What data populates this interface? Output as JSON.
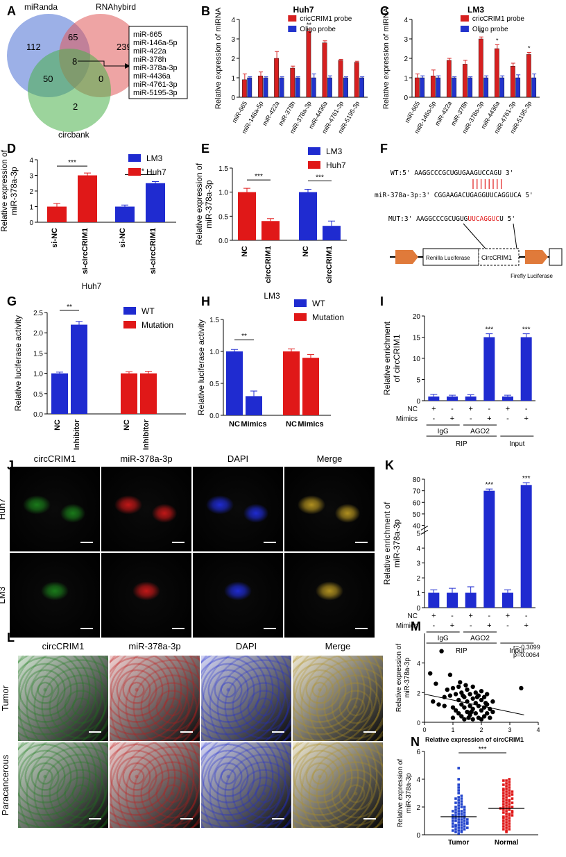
{
  "panel_labels": {
    "A": "A",
    "B": "B",
    "C": "C",
    "D": "D",
    "E": "E",
    "F": "F",
    "G": "G",
    "H": "H",
    "I": "I",
    "J": "J",
    "K": "K",
    "L": "L",
    "M": "M",
    "N": "N"
  },
  "venn": {
    "set1": "miRanda",
    "set2": "RNAhybird",
    "set3": "circbank",
    "n1": "112",
    "n12": "65",
    "n2": "239",
    "n123": "8",
    "n13": "50",
    "n23": "0",
    "n3": "2",
    "list": [
      "miR-665",
      "miR-146a-5p",
      "miR-422a",
      "miR-378h",
      "miR-378a-3p",
      "miR-4436a",
      "miR-4761-3p",
      "miR-5195-3p"
    ]
  },
  "seq": {
    "wt": "WT:5'  AAGGCCCGCUGUGAAGUCCAGU 3'",
    "mir": "miR-378a-3p:3'  CGGAAGACUGAGGUUCAGGUCA 5'",
    "mut_prefix": "MUT:3'  AAGGCCCGCUGUG",
    "mut_red": "UUCAGGUC",
    "mut_suffix": "U 5'",
    "box1": "Renilla Luciferase",
    "box2": "CircCRIM1",
    "box3": "Firefly Luciferase"
  },
  "micro": {
    "j_cols": [
      "circCRIM1",
      "miR-378a-3p",
      "DAPI",
      "Merge"
    ],
    "j_rows": [
      "Huh7",
      "LM3"
    ],
    "l_cols": [
      "circCRIM1",
      "miR-378a-3p",
      "DAPI",
      "Merge"
    ],
    "l_rows": [
      "Tumor",
      "Paracancerous"
    ],
    "channel_colors": [
      "#1a7a1a",
      "#c01818",
      "#1f2bd0",
      "#b09020"
    ]
  },
  "chart_data": [
    {
      "id": "B",
      "type": "bar",
      "title": "Huh7",
      "ylabel": "Relative expression of miRNA",
      "ylim": [
        0,
        4
      ],
      "yticks": [
        "0",
        "1",
        "2",
        "3",
        "4"
      ],
      "categories": [
        "miR-665",
        "miR-146a-5p",
        "miR-422a",
        "miR-378h",
        "miR-378a-3p",
        "miR-4436a",
        "miR-4761-3p",
        "miR-5195-3p"
      ],
      "series": [
        {
          "name": "cricCRIM1 probe",
          "color": "#d62020",
          "values": [
            0.9,
            1.1,
            2.0,
            1.5,
            3.4,
            2.8,
            1.9,
            1.8
          ],
          "errors": [
            0.3,
            0.2,
            0.35,
            0.1,
            0.1,
            0.1,
            0.05,
            0.05
          ]
        },
        {
          "name": "Oligo probe",
          "color": "#2233cc",
          "values": [
            1.0,
            1.0,
            1.0,
            1.0,
            1.0,
            1.0,
            1.0,
            1.0
          ],
          "errors": [
            0.05,
            0.05,
            0.05,
            0.05,
            0.2,
            0.1,
            0.05,
            0.05
          ]
        }
      ],
      "annotations": [
        {
          "category": 4,
          "text": "**"
        }
      ]
    },
    {
      "id": "C",
      "type": "bar",
      "title": "LM3",
      "ylabel": "Relative expression of miRNA",
      "ylim": [
        0,
        4
      ],
      "yticks": [
        "0",
        "1",
        "2",
        "3",
        "4"
      ],
      "categories": [
        "miR-665",
        "miR-146a-5p",
        "miR-422a",
        "miR-378h",
        "miR-378a-3p",
        "miR-4436a",
        "miR-4761-3p",
        "miR-5195-3p"
      ],
      "series": [
        {
          "name": "cricCRIM1 probe",
          "color": "#d62020",
          "values": [
            1.0,
            1.1,
            1.9,
            1.7,
            3.0,
            2.5,
            1.6,
            2.2
          ],
          "errors": [
            0.2,
            0.3,
            0.1,
            0.2,
            0.1,
            0.2,
            0.15,
            0.1
          ]
        },
        {
          "name": "Oligo probe",
          "color": "#2233cc",
          "values": [
            1.0,
            1.0,
            1.0,
            1.0,
            1.0,
            1.0,
            1.0,
            1.0
          ],
          "errors": [
            0.1,
            0.1,
            0.05,
            0.05,
            0.1,
            0.1,
            0.15,
            0.2
          ]
        }
      ],
      "annotations": [
        {
          "category": 4,
          "text": "**"
        },
        {
          "category": 5,
          "text": "*"
        },
        {
          "category": 7,
          "text": "*"
        }
      ]
    },
    {
      "id": "D",
      "type": "bar",
      "ylabel": "Relative expression of miR-378a-3p",
      "ylim": [
        0,
        4
      ],
      "yticks": [
        "0",
        "1",
        "2",
        "3",
        "4"
      ],
      "categories": [
        "si-NC",
        "si-circCRIM1",
        "si-NC",
        "si-circCRIM1"
      ],
      "values": [
        1.0,
        3.0,
        1.0,
        2.5
      ],
      "errors": [
        0.2,
        0.15,
        0.1,
        0.1
      ],
      "colors": [
        "#e01818",
        "#e01818",
        "#1f2bd0",
        "#1f2bd0"
      ],
      "legend": [
        {
          "name": "LM3",
          "color": "#1f2bd0"
        },
        {
          "name": "Huh7",
          "color": "#e01818"
        }
      ],
      "sig": [
        {
          "from": 0,
          "to": 1,
          "text": "***"
        },
        {
          "from": 2,
          "to": 3,
          "text": "***"
        }
      ]
    },
    {
      "id": "E",
      "type": "bar",
      "ylabel": "Relative expression of miR-378a-3p",
      "ylim": [
        0,
        1.5
      ],
      "yticks": [
        "0.0",
        "0.5",
        "1.0",
        "1.5"
      ],
      "categories": [
        "NC",
        "circCRIM1",
        "NC",
        "circCRIM1"
      ],
      "values": [
        1.0,
        0.4,
        1.0,
        0.3
      ],
      "errors": [
        0.08,
        0.05,
        0.06,
        0.1
      ],
      "colors": [
        "#e01818",
        "#e01818",
        "#1f2bd0",
        "#1f2bd0"
      ],
      "legend": [
        {
          "name": "LM3",
          "color": "#1f2bd0"
        },
        {
          "name": "Huh7",
          "color": "#e01818"
        }
      ],
      "sig": [
        {
          "from": 0,
          "to": 1,
          "text": "***"
        },
        {
          "from": 2,
          "to": 3,
          "text": "***"
        }
      ]
    },
    {
      "id": "G",
      "type": "bar",
      "title": "Huh7",
      "ylabel": "Relative luciferase activity",
      "ylim": [
        0,
        2.5
      ],
      "yticks": [
        "0.0",
        "0.5",
        "1.0",
        "1.5",
        "2.0",
        "2.5"
      ],
      "categories": [
        "NC",
        "Inhibitor",
        "NC",
        "Inhibitor"
      ],
      "values": [
        1.0,
        2.2,
        1.0,
        1.0
      ],
      "errors": [
        0.03,
        0.08,
        0.04,
        0.05
      ],
      "colors": [
        "#1f2bd0",
        "#1f2bd0",
        "#e01818",
        "#e01818"
      ],
      "legend": [
        {
          "name": "WT",
          "color": "#1f2bd0"
        },
        {
          "name": "Mutation",
          "color": "#e01818"
        }
      ],
      "sig": [
        {
          "from": 0,
          "to": 1,
          "text": "**"
        }
      ]
    },
    {
      "id": "H",
      "type": "bar",
      "title": "LM3",
      "ylabel": "Relative luciferase activity",
      "ylim": [
        0,
        1.5
      ],
      "yticks": [
        "0.0",
        "0.5",
        "1.0",
        "1.5"
      ],
      "categories": [
        "NC",
        "Mimics",
        "NC",
        "Mimics"
      ],
      "values": [
        1.0,
        0.3,
        1.0,
        0.9
      ],
      "errors": [
        0.03,
        0.08,
        0.04,
        0.05
      ],
      "colors": [
        "#1f2bd0",
        "#1f2bd0",
        "#e01818",
        "#e01818"
      ],
      "legend": [
        {
          "name": "WT",
          "color": "#1f2bd0"
        },
        {
          "name": "Mutation",
          "color": "#e01818"
        }
      ],
      "sig": [
        {
          "from": 0,
          "to": 1,
          "text": "**"
        }
      ]
    },
    {
      "id": "I",
      "type": "bar",
      "ylabel": "Relative enrichment of circCRIM1",
      "ylim": [
        0,
        20
      ],
      "yticks": [
        "0",
        "5",
        "10",
        "15",
        "20"
      ],
      "values": [
        1.0,
        1.0,
        1.0,
        15.0,
        1.0,
        15.0
      ],
      "errors": [
        0.5,
        0.3,
        0.4,
        0.8,
        0.3,
        0.8
      ],
      "color": "#1f2bd0",
      "row_nc": [
        "+",
        "-",
        "+",
        "-",
        "+",
        "-"
      ],
      "row_mimics": [
        "-",
        "+",
        "-",
        "+",
        "-",
        "+"
      ],
      "row_labels": [
        "NC",
        "Mimics"
      ],
      "groups": [
        "IgG",
        "AGO2",
        "Input"
      ],
      "group_label": "RIP",
      "stars": [
        {
          "index": 3,
          "text": "***"
        },
        {
          "index": 5,
          "text": "***"
        }
      ]
    },
    {
      "id": "K",
      "type": "bar",
      "ylabel": "Relative enrichment of miR-378a-3p",
      "ylim": [
        0,
        80
      ],
      "axis_break": [
        5,
        40
      ],
      "yticks_low": [
        "0",
        "1",
        "2",
        "3",
        "4",
        "5"
      ],
      "yticks_high": [
        "40",
        "50",
        "60",
        "70",
        "80"
      ],
      "values": [
        1.0,
        1.0,
        1.0,
        70.0,
        1.0,
        75.0
      ],
      "errors": [
        0.2,
        0.3,
        0.4,
        1.5,
        0.2,
        2.0
      ],
      "color": "#1f2bd0",
      "row_nc": [
        "+",
        "-",
        "+",
        "-",
        "+",
        "-"
      ],
      "row_mimics": [
        "-",
        "+",
        "-",
        "+",
        "-",
        "+"
      ],
      "row_labels": [
        "NC",
        "Mimics"
      ],
      "groups": [
        "IgG",
        "AGO2",
        "Input"
      ],
      "group_label": "RIP",
      "stars": [
        {
          "index": 3,
          "text": "***"
        },
        {
          "index": 5,
          "text": "***"
        }
      ]
    },
    {
      "id": "M",
      "type": "scatter",
      "xlabel": "Relative expression of circCRIM1",
      "ylabel": "Relative expression of miR-378a-3p",
      "xlim": [
        0,
        4
      ],
      "ylim": [
        0,
        6
      ],
      "xticks": [
        "0",
        "1",
        "2",
        "3",
        "4"
      ],
      "yticks": [
        "0",
        "2",
        "4"
      ],
      "annotation": [
        "r=-0.3099",
        "p=0.0064"
      ],
      "fit": [
        [
          0,
          1.9
        ],
        [
          3.5,
          0.5
        ]
      ],
      "points": [
        [
          0.2,
          3.3
        ],
        [
          0.3,
          1.4
        ],
        [
          0.4,
          2.6
        ],
        [
          0.5,
          1.2
        ],
        [
          0.6,
          4.8
        ],
        [
          0.7,
          1.7
        ],
        [
          0.8,
          2.2
        ],
        [
          0.9,
          1.8
        ],
        [
          1.0,
          2.3
        ],
        [
          1.0,
          1.0
        ],
        [
          1.1,
          1.9
        ],
        [
          1.1,
          0.8
        ],
        [
          1.2,
          2.4
        ],
        [
          1.2,
          1.5
        ],
        [
          1.2,
          0.6
        ],
        [
          1.3,
          2.0
        ],
        [
          1.3,
          1.2
        ],
        [
          1.3,
          0.4
        ],
        [
          1.4,
          1.7
        ],
        [
          1.4,
          1.0
        ],
        [
          1.4,
          0.2
        ],
        [
          1.5,
          2.2
        ],
        [
          1.5,
          1.4
        ],
        [
          1.5,
          0.7
        ],
        [
          1.6,
          1.9
        ],
        [
          1.6,
          1.1
        ],
        [
          1.6,
          0.5
        ],
        [
          1.7,
          2.4
        ],
        [
          1.7,
          1.6
        ],
        [
          1.7,
          0.9
        ],
        [
          1.7,
          0.2
        ],
        [
          1.8,
          2.0
        ],
        [
          1.8,
          1.3
        ],
        [
          1.8,
          0.6
        ],
        [
          1.9,
          1.8
        ],
        [
          1.9,
          1.1
        ],
        [
          1.9,
          0.3
        ],
        [
          2.0,
          2.1
        ],
        [
          2.0,
          1.5
        ],
        [
          2.0,
          0.8
        ],
        [
          2.1,
          1.7
        ],
        [
          2.1,
          1.0
        ],
        [
          2.1,
          0.4
        ],
        [
          2.2,
          1.9
        ],
        [
          2.2,
          1.2
        ],
        [
          2.2,
          0.6
        ],
        [
          2.3,
          0.9
        ],
        [
          2.3,
          0.3
        ],
        [
          2.4,
          1.4
        ],
        [
          2.4,
          0.7
        ],
        [
          0.9,
          3.2
        ],
        [
          1.0,
          0.3
        ],
        [
          1.25,
          2.7
        ],
        [
          1.55,
          0.3
        ],
        [
          3.4,
          2.3
        ],
        [
          2.0,
          0.2
        ],
        [
          1.45,
          2.5
        ],
        [
          1.85,
          1.7
        ],
        [
          2.15,
          1.3
        ],
        [
          1.35,
          1.8
        ],
        [
          1.65,
          0.7
        ],
        [
          0.7,
          1.1
        ]
      ]
    },
    {
      "id": "N",
      "type": "scatter",
      "ylabel": "Relative expression of miR-378a-3p",
      "categories": [
        "Tumor",
        "Normal"
      ],
      "ylim": [
        0,
        6
      ],
      "yticks": [
        "0",
        "2",
        "4",
        "6"
      ],
      "sig": "***",
      "means": [
        1.3,
        1.9
      ],
      "series": [
        {
          "name": "Tumor",
          "color": "#2244cc",
          "values": [
            0.1,
            0.2,
            0.2,
            0.3,
            0.3,
            0.4,
            0.4,
            0.5,
            0.5,
            0.6,
            0.6,
            0.7,
            0.7,
            0.7,
            0.8,
            0.8,
            0.9,
            0.9,
            1.0,
            1.0,
            1.0,
            1.1,
            1.1,
            1.2,
            1.2,
            1.2,
            1.3,
            1.3,
            1.4,
            1.4,
            1.5,
            1.5,
            1.6,
            1.6,
            1.7,
            1.7,
            1.8,
            1.8,
            1.9,
            2.0,
            2.0,
            2.1,
            2.2,
            2.3,
            2.4,
            2.5,
            2.6,
            2.7,
            2.8,
            3.0,
            3.2,
            3.4,
            3.6,
            4.0,
            4.8,
            0.3,
            0.6,
            0.9,
            1.1,
            1.4,
            1.7,
            2.0,
            2.3,
            2.6,
            0.5,
            0.8
          ]
        },
        {
          "name": "Normal",
          "color": "#e01818",
          "values": [
            0.2,
            0.3,
            0.4,
            0.5,
            0.6,
            0.7,
            0.8,
            0.9,
            1.0,
            1.0,
            1.1,
            1.2,
            1.3,
            1.4,
            1.5,
            1.5,
            1.6,
            1.7,
            1.8,
            1.8,
            1.9,
            2.0,
            2.0,
            2.1,
            2.2,
            2.3,
            2.4,
            2.5,
            2.5,
            2.6,
            2.7,
            2.8,
            2.9,
            3.0,
            3.0,
            3.1,
            3.2,
            3.3,
            3.4,
            3.5,
            3.6,
            3.7,
            3.8,
            3.9,
            4.0,
            0.4,
            0.8,
            1.2,
            1.6,
            2.0,
            2.4,
            2.8,
            3.2,
            3.6,
            1.3,
            1.7,
            2.2,
            2.6,
            3.1,
            0.6,
            1.4,
            1.9,
            2.3,
            2.9,
            3.3,
            3.9
          ]
        }
      ]
    }
  ]
}
